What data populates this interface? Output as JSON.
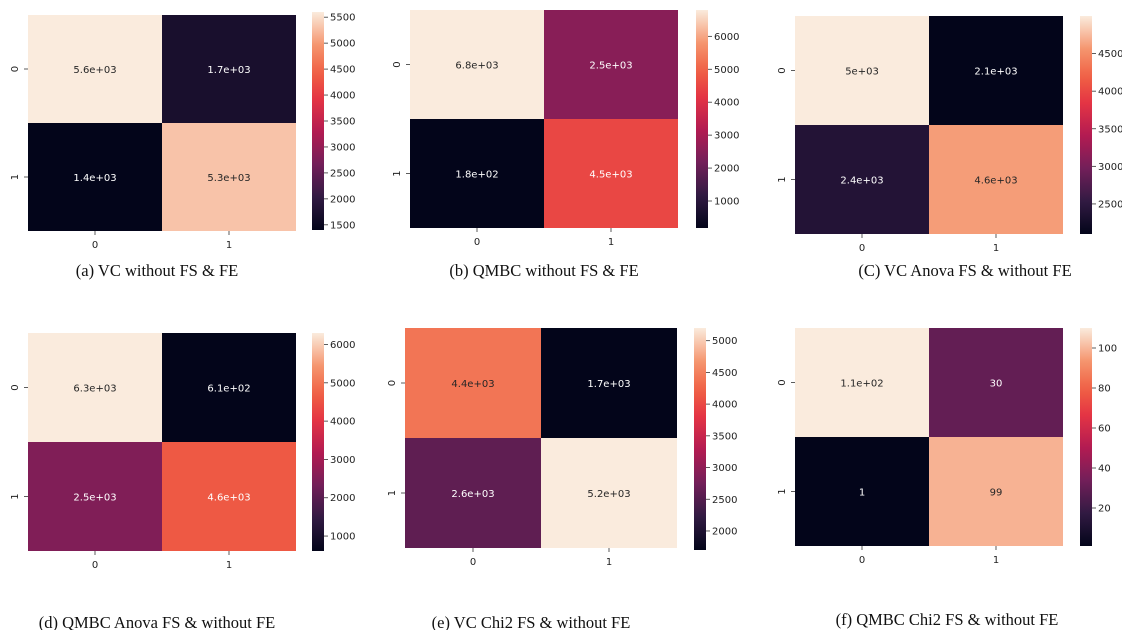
{
  "chart_data": [
    {
      "type": "heatmap",
      "caption": "(a) VC without FS & FE",
      "x_ticks": [
        "0",
        "1"
      ],
      "y_ticks": [
        "0",
        "1"
      ],
      "values": [
        [
          5600,
          1700
        ],
        [
          1400,
          5300
        ]
      ],
      "labels": [
        [
          "5.6e+03",
          "1.7e+03"
        ],
        [
          "1.4e+03",
          "5.3e+03"
        ]
      ],
      "colorbar": {
        "min": 1400,
        "max": 5600,
        "ticks": [
          1500,
          2000,
          2500,
          3000,
          3500,
          4000,
          4500,
          5000,
          5500
        ]
      }
    },
    {
      "type": "heatmap",
      "caption": "(b) QMBC without FS & FE",
      "x_ticks": [
        "0",
        "1"
      ],
      "y_ticks": [
        "0",
        "1"
      ],
      "values": [
        [
          6800,
          2500
        ],
        [
          180,
          4500
        ]
      ],
      "labels": [
        [
          "6.8e+03",
          "2.5e+03"
        ],
        [
          "1.8e+02",
          "4.5e+03"
        ]
      ],
      "colorbar": {
        "min": 180,
        "max": 6800,
        "ticks": [
          1000,
          2000,
          3000,
          4000,
          5000,
          6000
        ]
      }
    },
    {
      "type": "heatmap",
      "caption": "(C) VC Anova FS & without FE",
      "x_ticks": [
        "0",
        "1"
      ],
      "y_ticks": [
        "0",
        "1"
      ],
      "values": [
        [
          5000,
          2100
        ],
        [
          2400,
          4600
        ]
      ],
      "labels": [
        [
          "5e+03",
          "2.1e+03"
        ],
        [
          "2.4e+03",
          "4.6e+03"
        ]
      ],
      "colorbar": {
        "min": 2100,
        "max": 5000,
        "ticks": [
          2500,
          3000,
          3500,
          4000,
          4500
        ]
      }
    },
    {
      "type": "heatmap",
      "caption": "(d) QMBC Anova FS & without FE",
      "x_ticks": [
        "0",
        "1"
      ],
      "y_ticks": [
        "0",
        "1"
      ],
      "values": [
        [
          6300,
          610
        ],
        [
          2500,
          4600
        ]
      ],
      "labels": [
        [
          "6.3e+03",
          "6.1e+02"
        ],
        [
          "2.5e+03",
          "4.6e+03"
        ]
      ],
      "colorbar": {
        "min": 610,
        "max": 6300,
        "ticks": [
          1000,
          2000,
          3000,
          4000,
          5000,
          6000
        ]
      }
    },
    {
      "type": "heatmap",
      "caption": "(e) VC Chi2 FS & without FE",
      "x_ticks": [
        "0",
        "1"
      ],
      "y_ticks": [
        "0",
        "1"
      ],
      "values": [
        [
          4400,
          1700
        ],
        [
          2600,
          5200
        ]
      ],
      "labels": [
        [
          "4.4e+03",
          "1.7e+03"
        ],
        [
          "2.6e+03",
          "5.2e+03"
        ]
      ],
      "colorbar": {
        "min": 1700,
        "max": 5200,
        "ticks": [
          2000,
          2500,
          3000,
          3500,
          4000,
          4500,
          5000
        ]
      }
    },
    {
      "type": "heatmap",
      "caption": "(f) QMBC Chi2 FS & without FE",
      "x_ticks": [
        "0",
        "1"
      ],
      "y_ticks": [
        "0",
        "1"
      ],
      "values": [
        [
          110,
          30
        ],
        [
          1,
          99
        ]
      ],
      "labels": [
        [
          "1.1e+02",
          "30"
        ],
        [
          "1",
          "99"
        ]
      ],
      "colorbar": {
        "min": 1,
        "max": 110,
        "ticks": [
          20,
          40,
          60,
          80,
          100
        ]
      }
    }
  ]
}
